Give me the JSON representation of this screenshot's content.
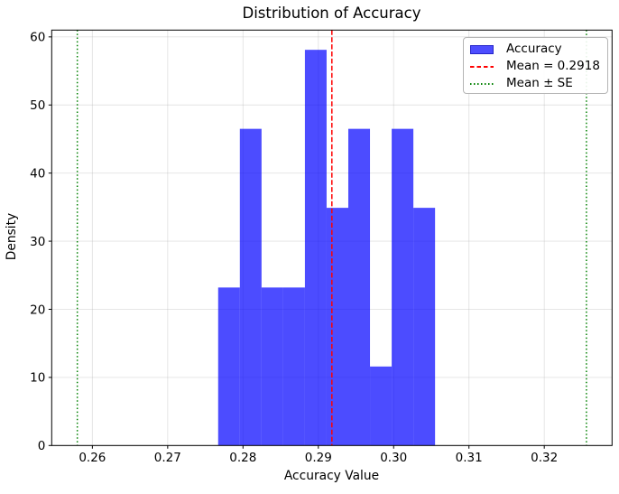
{
  "chart_data": {
    "type": "bar",
    "subtype": "histogram",
    "title": "Distribution of Accuracy",
    "xlabel": "Accuracy Value",
    "ylabel": "Density",
    "xlim": [
      0.2546,
      0.329
    ],
    "ylim": [
      0,
      61
    ],
    "grid": true,
    "grid_color": "#b0b0b0",
    "grid_alpha": 0.35,
    "xticks": [
      0.26,
      0.27,
      0.28,
      0.29,
      0.3,
      0.31,
      0.32
    ],
    "xtick_labels": [
      "0.26",
      "0.27",
      "0.28",
      "0.29",
      "0.30",
      "0.31",
      "0.32"
    ],
    "yticks": [
      0,
      10,
      20,
      30,
      40,
      50,
      60
    ],
    "ytick_labels": [
      "0",
      "10",
      "20",
      "30",
      "40",
      "50",
      "60"
    ],
    "bin_edges": [
      0.2767,
      0.27958,
      0.28246,
      0.28534,
      0.28822,
      0.2911,
      0.29398,
      0.29686,
      0.29974,
      0.30262,
      0.3055
    ],
    "densities": [
      23.2,
      46.5,
      23.2,
      23.2,
      58.1,
      34.9,
      46.5,
      11.6,
      46.5,
      34.9
    ],
    "bar_color": "#0000ff",
    "bar_alpha": 0.7,
    "mean_line": {
      "value": 0.2918,
      "color": "#ff0000",
      "style": "dashed"
    },
    "se_lines": {
      "values": [
        0.258,
        0.3256
      ],
      "color": "#008000",
      "style": "dotted"
    },
    "legend": [
      {
        "type": "patch",
        "label": "Accuracy",
        "color": "#4d4dff",
        "border": "#2525c8"
      },
      {
        "type": "dashed",
        "label": "Mean = 0.2918",
        "color": "#ff0000"
      },
      {
        "type": "dotted",
        "label": "Mean ± SE",
        "color": "#008000"
      }
    ],
    "legend_position": "upper right"
  }
}
